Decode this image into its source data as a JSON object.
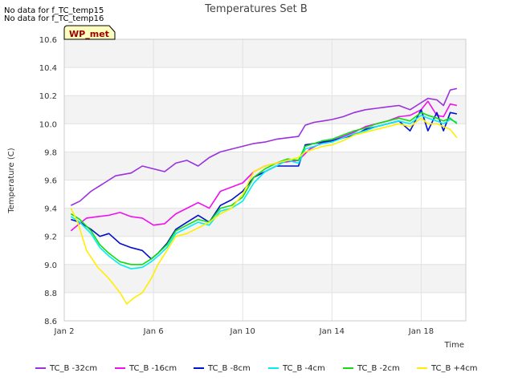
{
  "notes": [
    "No data for f_TC_temp15",
    "No data for f_TC_temp16"
  ],
  "chart_data": {
    "type": "line",
    "title": "Temperatures Set B",
    "xlabel": "Time",
    "ylabel": "Temperature (C)",
    "badge": "WP_met",
    "xlim": [
      2.0,
      20.0
    ],
    "ylim": [
      8.6,
      10.6
    ],
    "x_ticks": [
      {
        "value": 2,
        "label": "Jan 2"
      },
      {
        "value": 6,
        "label": "Jan 6"
      },
      {
        "value": 10,
        "label": "Jan 10"
      },
      {
        "value": 14,
        "label": "Jan 14"
      },
      {
        "value": 18,
        "label": "Jan 18"
      }
    ],
    "y_ticks": [
      8.6,
      8.8,
      9.0,
      9.2,
      9.4,
      9.6,
      9.8,
      10.0,
      10.2,
      10.4,
      10.6
    ],
    "y_tick_labels": [
      "8.6",
      "8.8",
      "9.0",
      "9.2",
      "9.4",
      "9.6",
      "9.8",
      "10.0",
      "10.2",
      "10.4",
      "10.6"
    ],
    "grid": true,
    "legend_position": "bottom",
    "series": [
      {
        "name": "TC_B -32cm",
        "color": "#9b30e0",
        "x": [
          2.3,
          2.7,
          3.2,
          3.8,
          4.3,
          5.0,
          5.5,
          6.0,
          6.5,
          7.0,
          7.5,
          8.0,
          8.5,
          9.0,
          9.5,
          10.0,
          10.5,
          11.0,
          11.5,
          12.0,
          12.5,
          12.8,
          13.2,
          13.6,
          14.0,
          14.5,
          15.0,
          15.5,
          16.0,
          16.5,
          17.0,
          17.5,
          18.0,
          18.3,
          18.7,
          19.0,
          19.3,
          19.6
        ],
        "y": [
          9.42,
          9.45,
          9.52,
          9.58,
          9.63,
          9.65,
          9.7,
          9.68,
          9.66,
          9.72,
          9.74,
          9.7,
          9.76,
          9.8,
          9.82,
          9.84,
          9.86,
          9.87,
          9.89,
          9.9,
          9.91,
          9.99,
          10.01,
          10.02,
          10.03,
          10.05,
          10.08,
          10.1,
          10.11,
          10.12,
          10.13,
          10.1,
          10.15,
          10.18,
          10.17,
          10.13,
          10.24,
          10.25
        ]
      },
      {
        "name": "TC_B -16cm",
        "color": "#ee11ee",
        "x": [
          2.3,
          2.6,
          3.0,
          3.5,
          4.0,
          4.5,
          5.0,
          5.5,
          6.0,
          6.5,
          7.0,
          7.5,
          8.0,
          8.5,
          9.0,
          9.5,
          10.0,
          10.5,
          11.0,
          11.5,
          12.0,
          12.5,
          13.0,
          13.5,
          14.0,
          14.5,
          15.0,
          15.5,
          16.0,
          16.5,
          17.0,
          17.5,
          18.0,
          18.3,
          18.7,
          19.0,
          19.3,
          19.6
        ],
        "y": [
          9.24,
          9.28,
          9.33,
          9.34,
          9.35,
          9.37,
          9.34,
          9.33,
          9.28,
          9.29,
          9.36,
          9.4,
          9.44,
          9.4,
          9.52,
          9.55,
          9.58,
          9.66,
          9.7,
          9.72,
          9.73,
          9.74,
          9.82,
          9.86,
          9.88,
          9.91,
          9.94,
          9.98,
          10.0,
          10.02,
          10.05,
          10.06,
          10.1,
          10.16,
          10.06,
          10.05,
          10.14,
          10.13
        ]
      },
      {
        "name": "TC_B -8cm",
        "color": "#0010cc",
        "x": [
          2.3,
          2.7,
          3.2,
          3.6,
          4.0,
          4.5,
          5.0,
          5.5,
          5.9,
          6.2,
          6.6,
          7.0,
          7.5,
          8.0,
          8.5,
          9.0,
          9.5,
          10.0,
          10.5,
          11.0,
          11.5,
          12.0,
          12.5,
          12.8,
          13.2,
          13.6,
          14.0,
          14.5,
          15.0,
          15.5,
          16.0,
          16.5,
          17.0,
          17.5,
          18.0,
          18.3,
          18.7,
          19.0,
          19.3,
          19.6
        ],
        "y": [
          9.32,
          9.3,
          9.25,
          9.2,
          9.22,
          9.15,
          9.12,
          9.1,
          9.04,
          9.08,
          9.15,
          9.25,
          9.3,
          9.35,
          9.3,
          9.42,
          9.46,
          9.52,
          9.62,
          9.66,
          9.7,
          9.7,
          9.7,
          9.85,
          9.86,
          9.87,
          9.88,
          9.9,
          9.92,
          9.96,
          9.98,
          10.0,
          10.02,
          9.95,
          10.1,
          9.95,
          10.08,
          9.95,
          10.08,
          10.07
        ]
      },
      {
        "name": "TC_B -4cm",
        "color": "#00eeee",
        "x": [
          2.3,
          2.7,
          3.2,
          3.6,
          4.0,
          4.5,
          5.0,
          5.5,
          5.9,
          6.2,
          6.6,
          7.0,
          7.5,
          8.0,
          8.5,
          9.0,
          9.5,
          10.0,
          10.5,
          11.0,
          11.5,
          12.0,
          12.5,
          12.8,
          13.2,
          13.6,
          14.0,
          14.5,
          15.0,
          15.5,
          16.0,
          16.5,
          17.0,
          17.5,
          18.0,
          18.3,
          18.7,
          19.0,
          19.3,
          19.6
        ],
        "y": [
          9.34,
          9.3,
          9.22,
          9.12,
          9.06,
          9.0,
          8.97,
          8.98,
          9.02,
          9.06,
          9.12,
          9.22,
          9.26,
          9.3,
          9.28,
          9.38,
          9.4,
          9.45,
          9.58,
          9.66,
          9.7,
          9.74,
          9.72,
          9.82,
          9.84,
          9.86,
          9.87,
          9.9,
          9.93,
          9.95,
          9.98,
          10.0,
          10.02,
          10.0,
          10.06,
          10.04,
          10.02,
          10.0,
          10.03,
          10.01
        ]
      },
      {
        "name": "TC_B -2cm",
        "color": "#11dd11",
        "x": [
          2.3,
          2.7,
          3.2,
          3.6,
          4.0,
          4.5,
          5.0,
          5.5,
          5.9,
          6.2,
          6.6,
          7.0,
          7.5,
          8.0,
          8.5,
          9.0,
          9.5,
          10.0,
          10.5,
          11.0,
          11.5,
          12.0,
          12.5,
          12.8,
          13.2,
          13.6,
          14.0,
          14.5,
          15.0,
          15.5,
          16.0,
          16.5,
          17.0,
          17.5,
          18.0,
          18.3,
          18.7,
          19.0,
          19.3,
          19.6
        ],
        "y": [
          9.36,
          9.32,
          9.24,
          9.14,
          9.08,
          9.02,
          9.0,
          9.0,
          9.04,
          9.08,
          9.14,
          9.24,
          9.28,
          9.32,
          9.3,
          9.4,
          9.42,
          9.48,
          9.62,
          9.68,
          9.72,
          9.75,
          9.74,
          9.84,
          9.86,
          9.88,
          9.89,
          9.92,
          9.95,
          9.97,
          10.0,
          10.02,
          10.04,
          10.02,
          10.08,
          10.06,
          10.04,
          10.02,
          10.04,
          10.0
        ]
      },
      {
        "name": "TC_B +4cm",
        "color": "#ffee00",
        "x": [
          2.3,
          2.6,
          3.0,
          3.5,
          4.0,
          4.5,
          4.8,
          5.1,
          5.5,
          5.9,
          6.2,
          6.6,
          7.0,
          7.5,
          8.0,
          8.5,
          9.0,
          9.5,
          10.0,
          10.5,
          11.0,
          11.5,
          12.0,
          12.5,
          12.8,
          13.2,
          13.6,
          14.0,
          14.5,
          15.0,
          15.5,
          16.0,
          16.5,
          17.0,
          17.5,
          18.0,
          18.3,
          18.7,
          19.0,
          19.3,
          19.6
        ],
        "y": [
          9.4,
          9.3,
          9.1,
          8.98,
          8.9,
          8.8,
          8.72,
          8.76,
          8.8,
          8.9,
          9.0,
          9.1,
          9.2,
          9.22,
          9.26,
          9.3,
          9.36,
          9.4,
          9.5,
          9.66,
          9.7,
          9.72,
          9.74,
          9.76,
          9.8,
          9.82,
          9.84,
          9.85,
          9.88,
          9.92,
          9.94,
          9.96,
          9.98,
          10.0,
          9.98,
          10.04,
          10.0,
          10.0,
          9.98,
          9.96,
          9.9
        ]
      }
    ]
  }
}
